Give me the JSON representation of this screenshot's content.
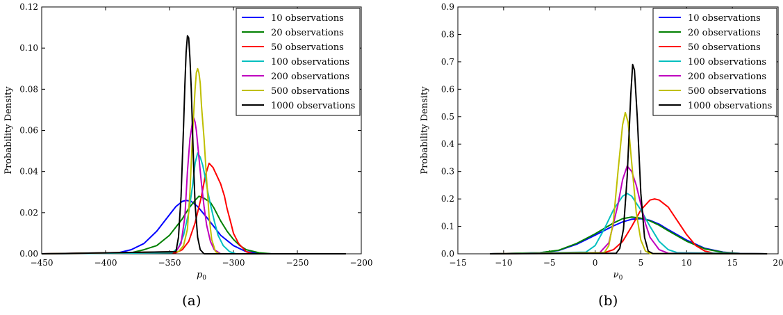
{
  "colors": {
    "10 observations": "#0000ff",
    "20 observations": "#008000",
    "50 observations": "#ff0000",
    "100 observations": "#00bfbf",
    "200 observations": "#bf00bf",
    "500 observations": "#bfbf00",
    "1000 observations": "#000000"
  },
  "chart_data": [
    {
      "type": "line",
      "panel": "(a)",
      "title": "",
      "xlabel": "p_0",
      "ylabel": "Probability Density",
      "xlim": [
        -450,
        -200
      ],
      "ylim": [
        0,
        0.12
      ],
      "xticks": [
        -450,
        -400,
        -350,
        -300,
        -250,
        -200
      ],
      "yticks": [
        0.0,
        0.02,
        0.04,
        0.06,
        0.08,
        0.1,
        0.12
      ],
      "ytick_decimals": 2,
      "grid": false,
      "legend": "top-right",
      "series": [
        {
          "name": "10 observations",
          "x": [
            -450,
            -390,
            -380,
            -370,
            -360,
            -350,
            -345,
            -340,
            -337,
            -333,
            -328,
            -320,
            -310,
            -300,
            -290,
            -280,
            -270,
            -212
          ],
          "y": [
            0,
            0.0005,
            0.002,
            0.005,
            0.011,
            0.019,
            0.023,
            0.0255,
            0.026,
            0.0255,
            0.023,
            0.017,
            0.009,
            0.004,
            0.001,
            0.0003,
            0,
            0
          ]
        },
        {
          "name": "20 observations",
          "x": [
            -450,
            -380,
            -370,
            -360,
            -350,
            -345,
            -340,
            -335,
            -330,
            -327,
            -323,
            -318,
            -315,
            -310,
            -305,
            -300,
            -295,
            -290,
            -280,
            -270,
            -212
          ],
          "y": [
            0,
            0.0005,
            0.002,
            0.004,
            0.009,
            0.013,
            0.017,
            0.022,
            0.026,
            0.028,
            0.027,
            0.025,
            0.022,
            0.016,
            0.011,
            0.007,
            0.004,
            0.002,
            0.0005,
            0,
            0
          ]
        },
        {
          "name": "50 observations",
          "x": [
            -450,
            -345,
            -340,
            -335,
            -330,
            -325,
            -322,
            -319,
            -316,
            -313,
            -310,
            -307,
            -305,
            -302,
            -300,
            -296,
            -290,
            -285,
            -212
          ],
          "y": [
            0,
            0.0005,
            0.002,
            0.006,
            0.015,
            0.028,
            0.038,
            0.044,
            0.042,
            0.038,
            0.034,
            0.028,
            0.022,
            0.015,
            0.01,
            0.005,
            0.001,
            0,
            0
          ]
        },
        {
          "name": "100 observations",
          "x": [
            -450,
            -348,
            -343,
            -339,
            -335,
            -332,
            -330,
            -328,
            -326,
            -324,
            -322,
            -320,
            -318,
            -315,
            -312,
            -308,
            -303,
            -298,
            -212
          ],
          "y": [
            0,
            0.0005,
            0.003,
            0.009,
            0.02,
            0.033,
            0.044,
            0.049,
            0.047,
            0.043,
            0.037,
            0.03,
            0.024,
            0.016,
            0.009,
            0.004,
            0.001,
            0,
            0
          ]
        },
        {
          "name": "200 observations",
          "x": [
            -450,
            -345,
            -341,
            -338,
            -336,
            -334,
            -332,
            -331,
            -330,
            -329,
            -327,
            -325,
            -323,
            -321,
            -318,
            -315,
            -310,
            -212
          ],
          "y": [
            0,
            0.001,
            0.005,
            0.018,
            0.04,
            0.056,
            0.064,
            0.066,
            0.064,
            0.06,
            0.047,
            0.034,
            0.023,
            0.014,
            0.006,
            0.002,
            0,
            0
          ]
        },
        {
          "name": "500 observations",
          "x": [
            -450,
            -343,
            -339,
            -336,
            -334,
            -332,
            -330,
            -329,
            -328,
            -327,
            -326,
            -325,
            -323,
            -321,
            -319,
            -317,
            -314,
            -311,
            -212
          ],
          "y": [
            0,
            0.001,
            0.004,
            0.012,
            0.03,
            0.058,
            0.08,
            0.088,
            0.09,
            0.088,
            0.083,
            0.072,
            0.056,
            0.036,
            0.018,
            0.007,
            0.001,
            0,
            0
          ]
        },
        {
          "name": "1000 observations",
          "x": [
            -450,
            -345,
            -343,
            -341,
            -340,
            -339,
            -338,
            -337,
            -336,
            -335,
            -334,
            -333,
            -332,
            -331,
            -330,
            -328,
            -326,
            -323,
            -212
          ],
          "y": [
            0,
            0.001,
            0.008,
            0.028,
            0.045,
            0.062,
            0.082,
            0.098,
            0.106,
            0.105,
            0.095,
            0.08,
            0.06,
            0.04,
            0.024,
            0.008,
            0.002,
            0,
            0
          ]
        }
      ]
    },
    {
      "type": "line",
      "panel": "(b)",
      "title": "",
      "xlabel": "ν_0",
      "ylabel": "Probability Density",
      "xlim": [
        -15,
        20
      ],
      "ylim": [
        0,
        0.9
      ],
      "xticks": [
        -15,
        -10,
        -5,
        0,
        5,
        10,
        15,
        20
      ],
      "yticks": [
        0.0,
        0.1,
        0.2,
        0.3,
        0.4,
        0.5,
        0.6,
        0.7,
        0.8,
        0.9
      ],
      "ytick_decimals": 1,
      "grid": false,
      "legend": "top-right",
      "series": [
        {
          "name": "10 observations",
          "x": [
            -11.5,
            -6,
            -4,
            -2,
            0,
            2,
            3,
            4,
            5,
            6,
            7,
            8,
            10,
            12,
            14,
            16,
            18.8
          ],
          "y": [
            0,
            0.004,
            0.012,
            0.035,
            0.068,
            0.102,
            0.116,
            0.126,
            0.128,
            0.122,
            0.108,
            0.088,
            0.05,
            0.02,
            0.006,
            0.001,
            0
          ]
        },
        {
          "name": "20 observations",
          "x": [
            -11.5,
            -6,
            -4,
            -2,
            0,
            2,
            3,
            4,
            5,
            6,
            7,
            8,
            10,
            12,
            14,
            16,
            18.8
          ],
          "y": [
            0,
            0.004,
            0.013,
            0.038,
            0.073,
            0.112,
            0.128,
            0.134,
            0.13,
            0.12,
            0.104,
            0.084,
            0.046,
            0.018,
            0.005,
            0.001,
            0
          ]
        },
        {
          "name": "50 observations",
          "x": [
            -11.5,
            1,
            2,
            3,
            4,
            5,
            6,
            6.5,
            7,
            8,
            9,
            10,
            11,
            12,
            13,
            18.8
          ],
          "y": [
            0,
            0.004,
            0.015,
            0.045,
            0.1,
            0.16,
            0.196,
            0.2,
            0.196,
            0.17,
            0.12,
            0.07,
            0.03,
            0.01,
            0.002,
            0
          ]
        },
        {
          "name": "100 observations",
          "x": [
            -11.5,
            -1,
            0,
            1,
            2,
            3,
            3.5,
            4,
            5,
            6,
            7,
            8,
            9,
            18.8
          ],
          "y": [
            0,
            0.006,
            0.03,
            0.09,
            0.16,
            0.21,
            0.22,
            0.21,
            0.16,
            0.1,
            0.045,
            0.015,
            0.004,
            0
          ]
        },
        {
          "name": "200 observations",
          "x": [
            -11.5,
            0.5,
            1.5,
            2.5,
            3,
            3.5,
            4,
            4.5,
            5,
            5.5,
            6,
            7,
            8,
            18.8
          ],
          "y": [
            0,
            0.004,
            0.04,
            0.18,
            0.27,
            0.32,
            0.3,
            0.25,
            0.18,
            0.11,
            0.06,
            0.015,
            0.002,
            0
          ]
        },
        {
          "name": "500 observations",
          "x": [
            -11.5,
            1,
            1.5,
            2,
            2.5,
            3,
            3.3,
            3.6,
            4,
            4.5,
            5,
            5.5,
            6,
            18.8
          ],
          "y": [
            0,
            0.004,
            0.03,
            0.12,
            0.3,
            0.47,
            0.515,
            0.48,
            0.33,
            0.15,
            0.05,
            0.01,
            0.001,
            0
          ]
        },
        {
          "name": "1000 observations",
          "x": [
            -11.5,
            2.3,
            2.7,
            3.1,
            3.5,
            3.9,
            4.1,
            4.3,
            4.6,
            5,
            5.4,
            5.8,
            6.3,
            18.8
          ],
          "y": [
            0,
            0.002,
            0.02,
            0.09,
            0.28,
            0.58,
            0.69,
            0.67,
            0.5,
            0.22,
            0.06,
            0.01,
            0.001,
            0
          ]
        }
      ]
    }
  ]
}
